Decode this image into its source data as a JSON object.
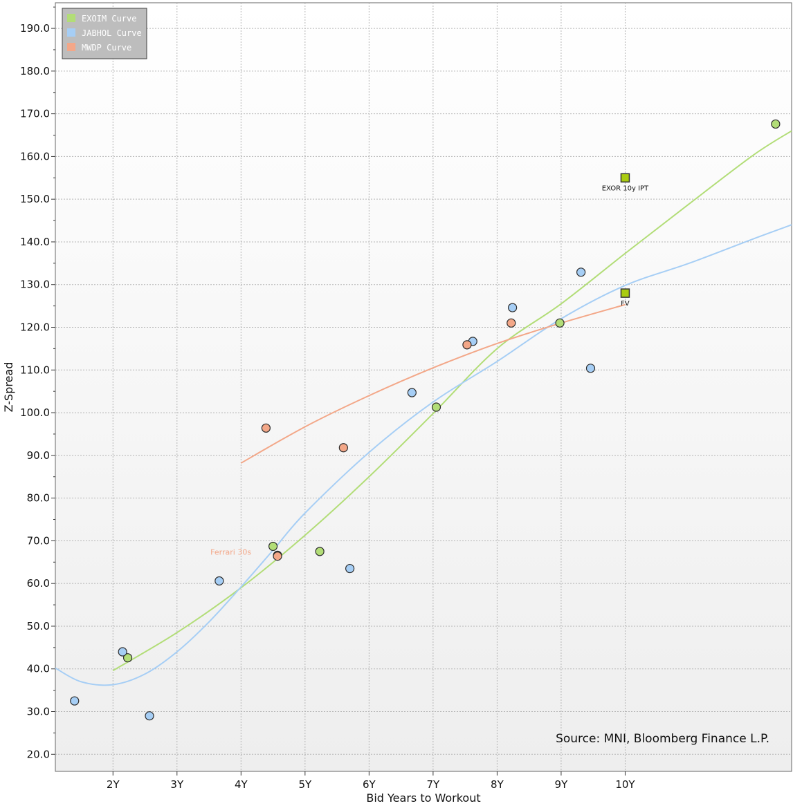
{
  "chart_data": {
    "type": "scatter",
    "xlabel": "Bid Years to Workout",
    "ylabel": "Z-Spread",
    "xlim": [
      1.1,
      12.6
    ],
    "ylim": [
      16,
      196
    ],
    "x_ticks": [
      {
        "value": 2,
        "label": "2Y"
      },
      {
        "value": 3,
        "label": "3Y"
      },
      {
        "value": 4,
        "label": "4Y"
      },
      {
        "value": 5,
        "label": "5Y"
      },
      {
        "value": 6,
        "label": "6Y"
      },
      {
        "value": 7,
        "label": "7Y"
      },
      {
        "value": 8,
        "label": "8Y"
      },
      {
        "value": 9,
        "label": "9Y"
      },
      {
        "value": 10,
        "label": "10Y"
      }
    ],
    "y_ticks": [
      {
        "value": 20,
        "label": "20.0"
      },
      {
        "value": 30,
        "label": "30.0"
      },
      {
        "value": 40,
        "label": "40.0"
      },
      {
        "value": 50,
        "label": "50.0"
      },
      {
        "value": 60,
        "label": "60.0"
      },
      {
        "value": 70,
        "label": "70.0"
      },
      {
        "value": 80,
        "label": "80.0"
      },
      {
        "value": 90,
        "label": "90.0"
      },
      {
        "value": 100,
        "label": "100.0"
      },
      {
        "value": 110,
        "label": "110.0"
      },
      {
        "value": 120,
        "label": "120.0"
      },
      {
        "value": 130,
        "label": "130.0"
      },
      {
        "value": 140,
        "label": "140.0"
      },
      {
        "value": 150,
        "label": "150.0"
      },
      {
        "value": 160,
        "label": "160.0"
      },
      {
        "value": 170,
        "label": "170.0"
      },
      {
        "value": 180,
        "label": "180.0"
      },
      {
        "value": 190,
        "label": "190.0"
      }
    ],
    "grid": true,
    "legend_position": "top-left",
    "series": [
      {
        "name": "EXOIM Curve",
        "color": "#b2dd77",
        "points": [
          [
            2.23,
            42.6
          ],
          [
            4.5,
            68.7
          ],
          [
            5.23,
            67.5
          ],
          [
            7.05,
            101.3
          ],
          [
            8.98,
            121.0
          ],
          [
            12.35,
            167.6
          ]
        ],
        "curve": [
          [
            2.0,
            39.6
          ],
          [
            3.0,
            48.5
          ],
          [
            4.0,
            59.0
          ],
          [
            5.0,
            71.3
          ],
          [
            6.0,
            85.0
          ],
          [
            7.0,
            99.8
          ],
          [
            8.0,
            115.0
          ],
          [
            9.0,
            125.5
          ],
          [
            10.0,
            137.3
          ],
          [
            11.0,
            148.9
          ],
          [
            12.0,
            160.3
          ],
          [
            12.6,
            166.0
          ]
        ]
      },
      {
        "name": "JABHOL Curve",
        "color": "#a6cef5",
        "points": [
          [
            1.4,
            32.5
          ],
          [
            2.15,
            44.0
          ],
          [
            2.57,
            29.0
          ],
          [
            3.66,
            60.6
          ],
          [
            4.57,
            66.6
          ],
          [
            5.7,
            63.5
          ],
          [
            6.67,
            104.7
          ],
          [
            7.62,
            116.7
          ],
          [
            8.24,
            124.6
          ],
          [
            9.31,
            132.9
          ],
          [
            9.46,
            110.4
          ]
        ],
        "curve": [
          [
            1.1,
            40.2
          ],
          [
            1.5,
            37.0
          ],
          [
            2.0,
            36.3
          ],
          [
            2.5,
            38.8
          ],
          [
            3.0,
            44.0
          ],
          [
            3.5,
            51.0
          ],
          [
            4.0,
            59.2
          ],
          [
            4.5,
            67.8
          ],
          [
            5.0,
            76.5
          ],
          [
            6.0,
            90.7
          ],
          [
            7.0,
            102.5
          ],
          [
            8.0,
            112.0
          ],
          [
            9.0,
            122.0
          ],
          [
            10.0,
            129.8
          ],
          [
            11.0,
            135.0
          ],
          [
            12.0,
            140.7
          ],
          [
            12.6,
            144.0
          ]
        ]
      },
      {
        "name": "MWDP Curve",
        "color": "#f3a788",
        "points": [
          [
            4.39,
            96.4
          ],
          [
            4.57,
            66.4
          ],
          [
            5.6,
            91.8
          ],
          [
            7.53,
            115.9
          ],
          [
            8.22,
            121.0
          ]
        ],
        "curve": [
          [
            4.0,
            88.2
          ],
          [
            5.0,
            96.7
          ],
          [
            6.0,
            104.0
          ],
          [
            7.0,
            110.5
          ],
          [
            8.0,
            116.2
          ],
          [
            9.0,
            121.0
          ],
          [
            10.0,
            125.3
          ]
        ]
      }
    ],
    "highlights": [
      {
        "label": "EXOR 10y IPT",
        "x": 10.0,
        "y": 155.0,
        "color": "#aacc11"
      },
      {
        "label": "FV",
        "x": 10.0,
        "y": 128.0,
        "color": "#aacc11"
      }
    ],
    "annotations": [
      {
        "label": "Ferrari 30s",
        "x": 4.57,
        "y": 66.4,
        "color": "#f3a788"
      }
    ],
    "source": "Source: MNI, Bloomberg Finance L.P."
  }
}
